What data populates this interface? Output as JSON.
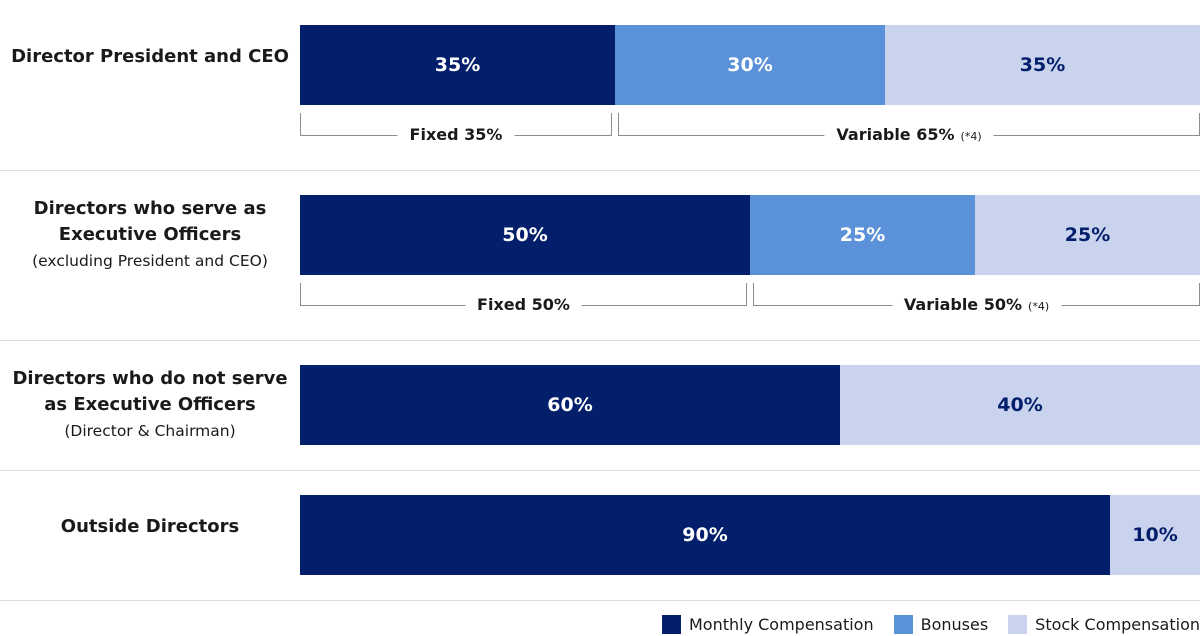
{
  "chart_data": {
    "type": "bar",
    "orientation": "horizontal",
    "stacked": true,
    "percent": true,
    "xlim": [
      0,
      100
    ],
    "title": "",
    "categories": [
      {
        "main": "Director President and CEO",
        "sub": ""
      },
      {
        "main": "Directors who serve as Executive Officers",
        "sub": "(excluding President and CEO)"
      },
      {
        "main": "Directors who do not serve as Executive Officers",
        "sub": "(Director & Chairman)"
      },
      {
        "main": "Outside Directors",
        "sub": ""
      }
    ],
    "series": [
      {
        "name": "Monthly Compensation",
        "color": "#031f6b",
        "text_color": "#ffffff",
        "values": [
          35,
          50,
          60,
          90
        ]
      },
      {
        "name": "Bonuses",
        "color": "#5a91d8",
        "text_color": "#ffffff",
        "values": [
          30,
          25,
          0,
          0
        ]
      },
      {
        "name": "Stock Compensation",
        "color": "#c9d3ee",
        "text_color": "#031f6b",
        "values": [
          35,
          25,
          40,
          10
        ]
      }
    ],
    "value_labels": [
      [
        "35%",
        "30%",
        "35%"
      ],
      [
        "50%",
        "25%",
        "25%"
      ],
      [
        "60%",
        "",
        "40%"
      ],
      [
        "90%",
        "",
        "10%"
      ]
    ],
    "annotations": [
      {
        "row": 0,
        "from": 0,
        "to": 35,
        "text": "Fixed 35%",
        "note": ""
      },
      {
        "row": 0,
        "from": 35,
        "to": 100,
        "text": "Variable 65%",
        "note": "(*4)"
      },
      {
        "row": 1,
        "from": 0,
        "to": 50,
        "text": "Fixed 50%",
        "note": ""
      },
      {
        "row": 1,
        "from": 50,
        "to": 100,
        "text": "Variable 50%",
        "note": "(*4)"
      }
    ],
    "legend": {
      "position": "bottom-right",
      "items": [
        "Monthly Compensation",
        "Bonuses",
        "Stock Compensation"
      ]
    }
  }
}
